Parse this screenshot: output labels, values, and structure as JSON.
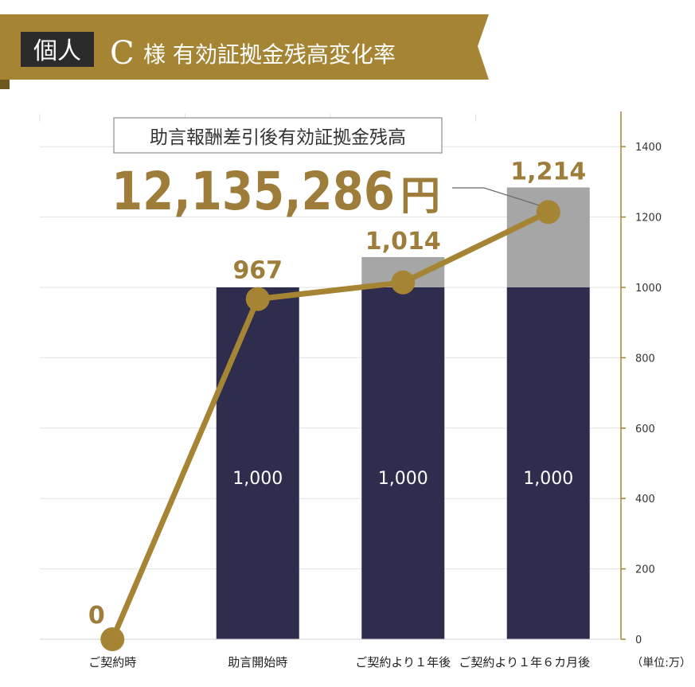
{
  "header": {
    "badge": "個人",
    "letter": "C",
    "title": "様 有効証拠金残高変化率"
  },
  "callout": {
    "label": "助言報酬差引後有効証拠金残高",
    "amount": "12,135,286",
    "unit": "円"
  },
  "unit_note": "（単位:万）",
  "colors": {
    "gold": "#a58534",
    "gold_text": "#9e7d3a",
    "navy": "#2e2d4d",
    "gray": "#a6a6a6",
    "banner_dark": "#2b2b2b"
  },
  "chart_data": {
    "type": "bar",
    "categories": [
      "ご契約時",
      "助言開始時",
      "ご契約より１年後",
      "ご契約より１年６カ月後"
    ],
    "series": [
      {
        "values": [
          0,
          1000,
          1000,
          1000
        ],
        "labels": [
          "",
          "1,000",
          "1,000",
          "1,000"
        ]
      },
      {
        "values": [
          0,
          0,
          86,
          284
        ]
      },
      {
        "values": [
          0,
          967,
          1014,
          1214
        ],
        "labels": [
          "0",
          "967",
          "1,014",
          "1,214"
        ]
      }
    ],
    "ylim": [
      0,
      1500
    ],
    "yticks": [
      0,
      200,
      400,
      600,
      800,
      1000,
      1200,
      1400
    ],
    "grid": true
  }
}
